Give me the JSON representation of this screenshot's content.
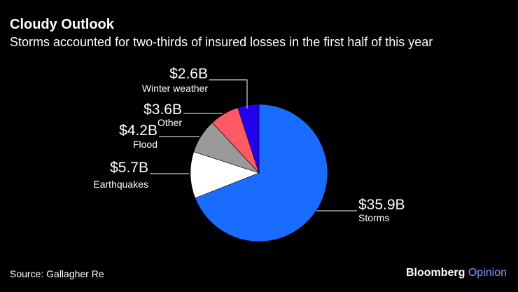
{
  "header": {
    "title": "Cloudy Outlook",
    "subtitle": "Storms accounted for two-thirds of insured losses in the first half of this year"
  },
  "footer": {
    "source": "Source: Gallagher Re",
    "brand_main": "Bloomberg",
    "brand_accent": "Opinion"
  },
  "chart_data": {
    "type": "pie",
    "title": "Cloudy Outlook",
    "subtitle": "Storms accounted for two-thirds of insured losses in the first half of this year",
    "unit": "USD billions",
    "slices": [
      {
        "name": "Storms",
        "value": 35.9,
        "label": "$35.9B",
        "color": "#1a6cff"
      },
      {
        "name": "Earthquakes",
        "value": 5.7,
        "label": "$5.7B",
        "color": "#ffffff"
      },
      {
        "name": "Flood",
        "value": 4.2,
        "label": "$4.2B",
        "color": "#9a9a9a"
      },
      {
        "name": "Other",
        "value": 3.6,
        "label": "$3.6B",
        "color": "#ff5a64"
      },
      {
        "name": "Winter weather",
        "value": 2.6,
        "label": "$2.6B",
        "color": "#2200ee"
      }
    ],
    "start": "12 o'clock",
    "direction": "clockwise"
  }
}
